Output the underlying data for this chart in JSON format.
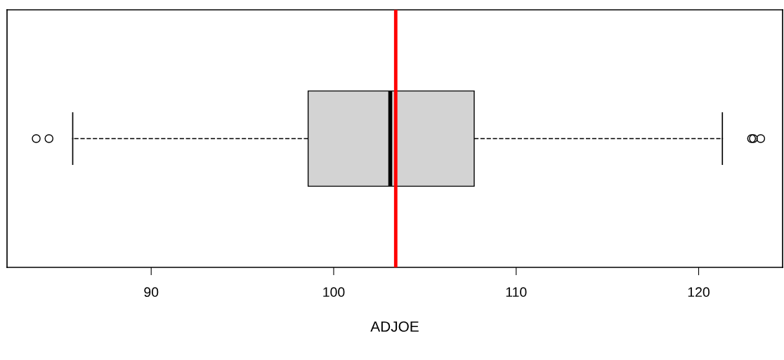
{
  "chart_data": {
    "type": "box",
    "orientation": "horizontal",
    "xlabel": "ADJOE",
    "categories": [
      null
    ],
    "boxes": [
      {
        "low": 85.7,
        "q1": 98.6,
        "median": 103.1,
        "q3": 107.7,
        "high": 121.3,
        "outliers": [
          83.7,
          84.4,
          122.9,
          123.0,
          123.4
        ]
      }
    ],
    "color": "#d3d3d3",
    "xlim": [
      82.1,
      124.6
    ],
    "xticks": [
      90,
      100,
      110,
      120
    ],
    "ref_lines": [
      {
        "axis": "x",
        "value": 103.4,
        "color": "#ff0000"
      }
    ],
    "tick_labels": "x",
    "grid": false
  }
}
